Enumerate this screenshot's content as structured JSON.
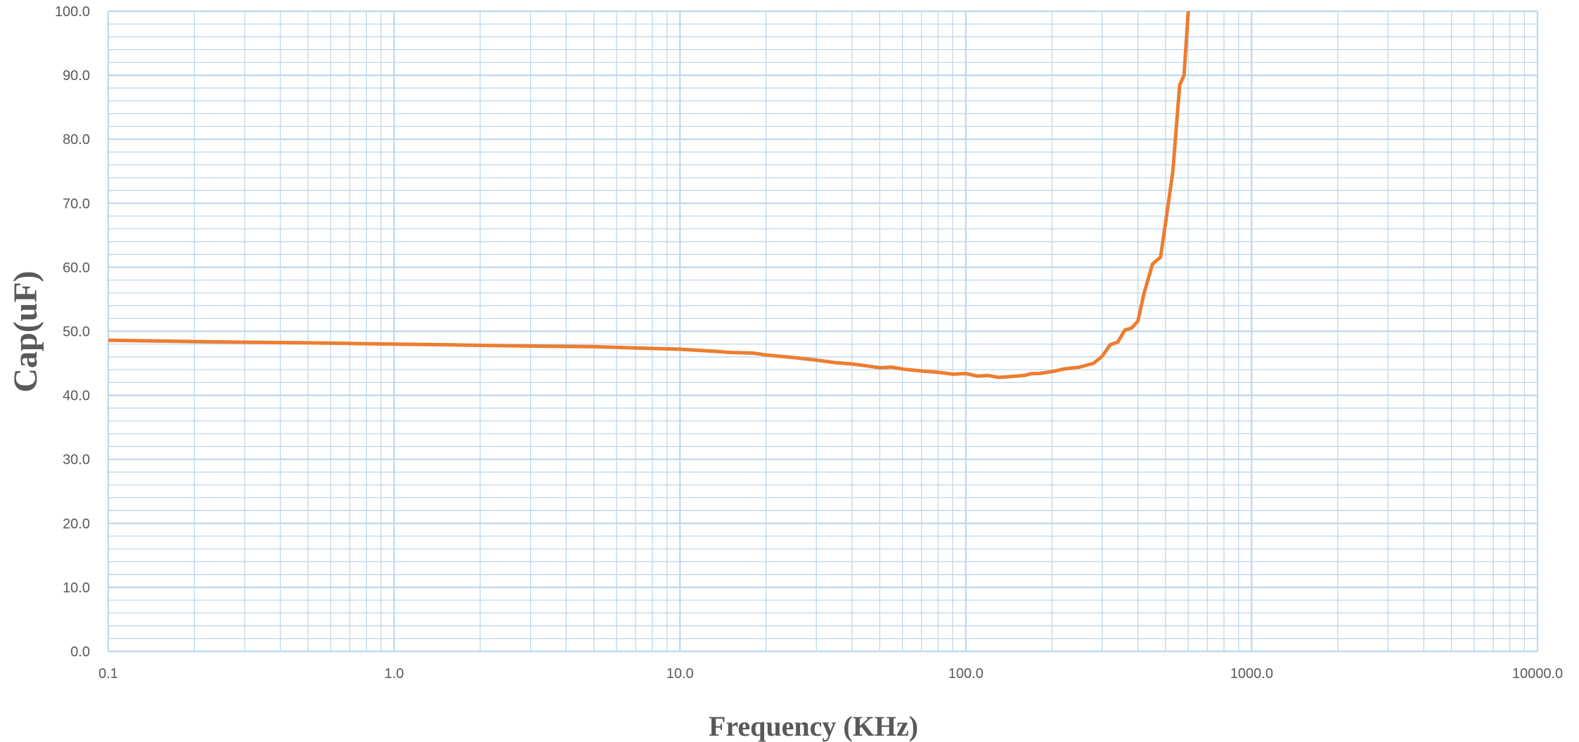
{
  "chart_data": {
    "type": "line",
    "title": "",
    "xlabel": "Frequency (KHz)",
    "ylabel": "Cap(uF)",
    "x_scale": "log",
    "xlim": [
      0.1,
      10000
    ],
    "ylim": [
      0,
      100
    ],
    "x_ticks": [
      "0.1",
      "1.0",
      "10.0",
      "100.0",
      "1000.0",
      "10000.0"
    ],
    "y_ticks": [
      "0.0",
      "10.0",
      "20.0",
      "30.0",
      "40.0",
      "50.0",
      "60.0",
      "70.0",
      "80.0",
      "90.0",
      "100.0"
    ],
    "grid": true,
    "legend": "none",
    "colors": {
      "line": "#ED7D31",
      "grid": "#BDD7EE",
      "text": "#595959"
    },
    "series": [
      {
        "x": [
          0.1,
          0.2,
          0.3,
          0.5,
          0.7,
          1.0,
          1.5,
          2.0,
          3.0,
          5.0,
          7.0,
          10.0,
          13.0,
          15.0,
          18.0,
          20.0,
          25.0,
          30.0,
          35.0,
          40.0,
          45.0,
          50.0,
          55.0,
          60.0,
          70.0,
          80.0,
          90.0,
          100.0,
          110.0,
          120.0,
          130.0,
          140.0,
          150.0,
          160.0,
          170.0,
          180.0,
          200.0,
          220.0,
          250.0,
          280.0,
          300.0,
          320.0,
          340.0,
          360.0,
          380.0,
          400.0,
          420.0,
          450.0,
          480.0,
          500.0,
          530.0,
          560.0,
          580.0,
          600.0,
          620.0
        ],
        "y": [
          48.6,
          48.4,
          48.3,
          48.2,
          48.1,
          48.0,
          47.9,
          47.8,
          47.7,
          47.6,
          47.4,
          47.2,
          46.9,
          46.7,
          46.6,
          46.3,
          45.9,
          45.5,
          45.1,
          44.9,
          44.6,
          44.3,
          44.4,
          44.1,
          43.8,
          43.6,
          43.3,
          43.4,
          43.0,
          43.1,
          42.8,
          42.9,
          43.0,
          43.1,
          43.4,
          43.4,
          43.7,
          44.1,
          44.4,
          45.0,
          46.1,
          47.9,
          48.3,
          50.2,
          50.5,
          51.6,
          55.9,
          60.5,
          61.6,
          67.0,
          75.0,
          88.5,
          90.0,
          100.0,
          103.0
        ]
      }
    ]
  }
}
